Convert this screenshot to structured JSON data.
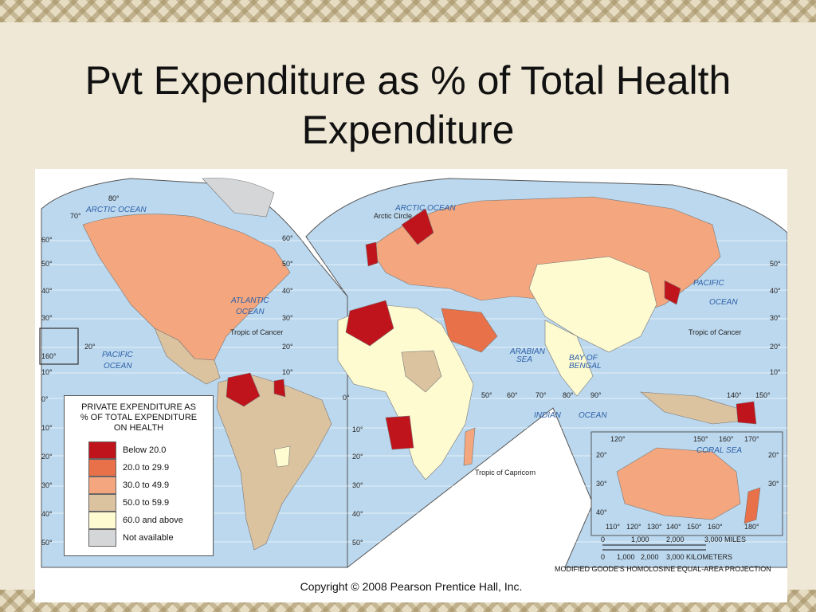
{
  "title": "Pvt Expenditure as % of Total Health Expenditure",
  "legend": {
    "title_lines": [
      "PRIVATE EXPENDITURE AS",
      "% OF TOTAL EXPENDITURE",
      "ON  HEALTH"
    ],
    "items": [
      {
        "label": "Below 20.0",
        "color": "#c0141c"
      },
      {
        "label": "20.0 to 29.9",
        "color": "#e8714a"
      },
      {
        "label": "30.0 to 49.9",
        "color": "#f4a77e"
      },
      {
        "label": "50.0 to 59.9",
        "color": "#dcc3a0"
      },
      {
        "label": "60.0 and above",
        "color": "#fffbd0"
      },
      {
        "label": "Not available",
        "color": "#d5d6d8"
      }
    ]
  },
  "map_labels": {
    "arctic_circle": "Arctic Circle",
    "tropic_cancer_left": "Tropic of Cancer",
    "tropic_cancer_right": "Tropic of Cancer",
    "tropic_capricorn": "Tropic of Capricorn",
    "arctic_ocean_left": "ARCTIC OCEAN",
    "arctic_ocean_right": "ARCTIC OCEAN",
    "atlantic_1": "ATLANTIC",
    "atlantic_2": "OCEAN",
    "pacific_left_1": "PACIFIC",
    "pacific_left_2": "OCEAN",
    "pacific_right_1": "PACIFIC",
    "pacific_right_2": "OCEAN",
    "indian": "INDIAN",
    "indian_ocean": "OCEAN",
    "arabian_1": "ARABIAN",
    "arabian_2": "SEA",
    "bengal_1": "BAY OF",
    "bengal_2": "BENGAL",
    "coral_sea": "CORAL  SEA"
  },
  "lat_labels": {
    "left": [
      "80°",
      "70°",
      "60°",
      "50°",
      "40°",
      "30°",
      "20°",
      "10°",
      "0°",
      "10°",
      "20°",
      "30°",
      "40°",
      "50°"
    ],
    "mid": [
      "60°",
      "50°",
      "40°",
      "30°",
      "20°",
      "10°",
      "0°",
      "10°",
      "20°",
      "30°",
      "40°",
      "50°"
    ],
    "right": [
      "50°",
      "40°",
      "30°",
      "20°",
      "10°"
    ]
  },
  "lon_labels": [
    "50°",
    "60°",
    "70°",
    "80°",
    "90°",
    "140°",
    "150°",
    "160°"
  ],
  "inset_lon_top": [
    "120°",
    "150°",
    "160°",
    "170°"
  ],
  "inset_lon_bottom": [
    "110°",
    "120°",
    "130°",
    "140°",
    "150°",
    "160°",
    "180°"
  ],
  "inset_lat": [
    "20°",
    "30°",
    "40°",
    "20°",
    "30°"
  ],
  "scale": {
    "miles": [
      "0",
      "1,000",
      "2,000",
      "3,000 MILES"
    ],
    "km": [
      "0",
      "1,000",
      "2,000",
      "3,000 KILOMETERS"
    ]
  },
  "projection": "MODIFIED GOODE'S HOMOLOSINE EQUAL-AREA PROJECTION",
  "copyright": "Copyright © 2008 Pearson Prentice Hall, Inc."
}
